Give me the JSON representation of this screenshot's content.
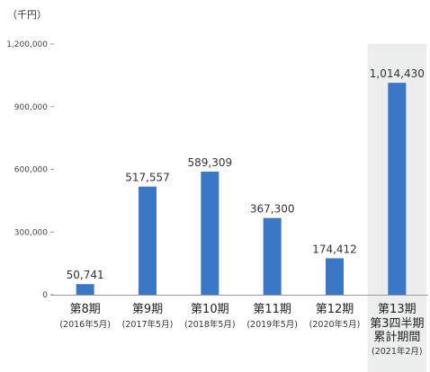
{
  "chart_data": {
    "type": "bar",
    "unit_label": "（千円）",
    "ylim": [
      0,
      1200000
    ],
    "yticks": [
      "0",
      "300,000",
      "600,000",
      "900,000",
      "1,200,000"
    ],
    "ytick_values": [
      0,
      300000,
      600000,
      900000,
      1200000
    ],
    "bar_color": "#3a77c4",
    "highlight_color": "#eceeed",
    "highlight_index": 5,
    "categories": [
      {
        "label": "第8期",
        "sub": [
          "(2016年5月)"
        ]
      },
      {
        "label": "第9期",
        "sub": [
          "(2017年5月)"
        ]
      },
      {
        "label": "第10期",
        "sub": [
          "(2018年5月)"
        ]
      },
      {
        "label": "第11期",
        "sub": [
          "(2019年5月)"
        ]
      },
      {
        "label": "第12期",
        "sub": [
          "(2020年5月)"
        ]
      },
      {
        "label": "第13期",
        "sub": [
          "第3四半期",
          "累計期間",
          "(2021年2月)"
        ]
      }
    ],
    "values": [
      50741,
      517557,
      589309,
      367300,
      174412,
      1014430
    ],
    "value_labels": [
      "50,741",
      "517,557",
      "589,309",
      "367,300",
      "174,412",
      "1,014,430"
    ]
  }
}
